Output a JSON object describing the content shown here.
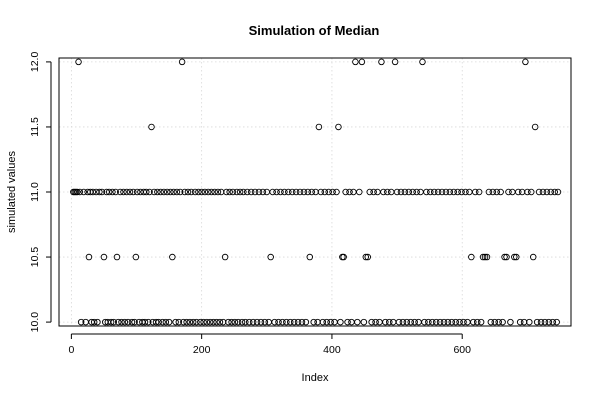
{
  "chart_data": {
    "type": "scatter",
    "title": "Simulation of Median",
    "xlabel": "Index",
    "ylabel": "simulated values",
    "xlim": [
      -19,
      767
    ],
    "ylim": [
      9.97,
      12.03
    ],
    "xticks": [
      0,
      200,
      400,
      600
    ],
    "yticks": [
      10.0,
      10.5,
      11.0,
      11.5,
      12.0
    ],
    "grid": true,
    "points": [
      [
        3,
        11.0
      ],
      [
        5,
        11.0
      ],
      [
        7,
        11.0
      ],
      [
        9,
        11.0
      ],
      [
        11,
        12.0
      ],
      [
        13,
        11.0
      ],
      [
        15,
        10.0
      ],
      [
        19,
        11.0
      ],
      [
        22,
        10.0
      ],
      [
        25,
        11.0
      ],
      [
        27,
        10.5
      ],
      [
        29,
        11.0
      ],
      [
        31,
        10.0
      ],
      [
        33,
        11.0
      ],
      [
        35,
        10.0
      ],
      [
        38,
        11.0
      ],
      [
        40,
        10.0
      ],
      [
        43,
        11.0
      ],
      [
        47,
        11.0
      ],
      [
        50,
        10.5
      ],
      [
        52,
        10.0
      ],
      [
        54,
        11.0
      ],
      [
        56,
        10.0
      ],
      [
        58,
        11.0
      ],
      [
        61,
        10.0
      ],
      [
        63,
        11.0
      ],
      [
        65,
        10.0
      ],
      [
        68,
        11.0
      ],
      [
        70,
        10.5
      ],
      [
        72,
        10.0
      ],
      [
        75,
        11.0
      ],
      [
        77,
        10.0
      ],
      [
        80,
        11.0
      ],
      [
        82,
        10.0
      ],
      [
        85,
        11.0
      ],
      [
        87,
        10.0
      ],
      [
        90,
        11.0
      ],
      [
        93,
        10.0
      ],
      [
        95,
        11.0
      ],
      [
        97,
        10.0
      ],
      [
        99,
        10.5
      ],
      [
        101,
        11.0
      ],
      [
        104,
        10.0
      ],
      [
        106,
        11.0
      ],
      [
        109,
        10.0
      ],
      [
        111,
        11.0
      ],
      [
        113,
        10.0
      ],
      [
        115,
        11.0
      ],
      [
        118,
        10.0
      ],
      [
        120,
        11.0
      ],
      [
        123,
        11.5
      ],
      [
        125,
        10.0
      ],
      [
        127,
        11.0
      ],
      [
        130,
        10.0
      ],
      [
        132,
        11.0
      ],
      [
        134,
        10.0
      ],
      [
        137,
        11.0
      ],
      [
        140,
        10.0
      ],
      [
        142,
        11.0
      ],
      [
        145,
        10.0
      ],
      [
        147,
        11.0
      ],
      [
        150,
        10.0
      ],
      [
        152,
        11.0
      ],
      [
        155,
        10.5
      ],
      [
        157,
        11.0
      ],
      [
        160,
        10.0
      ],
      [
        162,
        11.0
      ],
      [
        165,
        10.0
      ],
      [
        167,
        11.0
      ],
      [
        170,
        12.0
      ],
      [
        172,
        10.0
      ],
      [
        174,
        11.0
      ],
      [
        177,
        10.0
      ],
      [
        179,
        11.0
      ],
      [
        182,
        10.0
      ],
      [
        184,
        11.0
      ],
      [
        187,
        10.0
      ],
      [
        190,
        11.0
      ],
      [
        192,
        10.0
      ],
      [
        195,
        11.0
      ],
      [
        198,
        10.0
      ],
      [
        200,
        11.0
      ],
      [
        203,
        10.0
      ],
      [
        205,
        11.0
      ],
      [
        208,
        10.0
      ],
      [
        210,
        11.0
      ],
      [
        213,
        10.0
      ],
      [
        215,
        11.0
      ],
      [
        218,
        10.0
      ],
      [
        220,
        11.0
      ],
      [
        223,
        10.0
      ],
      [
        225,
        11.0
      ],
      [
        228,
        10.0
      ],
      [
        230,
        11.0
      ],
      [
        233,
        10.0
      ],
      [
        236,
        10.5
      ],
      [
        238,
        11.0
      ],
      [
        241,
        10.0
      ],
      [
        243,
        11.0
      ],
      [
        246,
        10.0
      ],
      [
        248,
        11.0
      ],
      [
        251,
        10.0
      ],
      [
        254,
        11.0
      ],
      [
        256,
        10.0
      ],
      [
        259,
        11.0
      ],
      [
        262,
        10.0
      ],
      [
        264,
        11.0
      ],
      [
        267,
        10.0
      ],
      [
        270,
        11.0
      ],
      [
        273,
        10.0
      ],
      [
        276,
        11.0
      ],
      [
        279,
        10.0
      ],
      [
        282,
        11.0
      ],
      [
        285,
        10.0
      ],
      [
        288,
        11.0
      ],
      [
        291,
        10.0
      ],
      [
        294,
        11.0
      ],
      [
        297,
        10.0
      ],
      [
        300,
        11.0
      ],
      [
        303,
        10.0
      ],
      [
        306,
        10.5
      ],
      [
        309,
        11.0
      ],
      [
        312,
        10.0
      ],
      [
        315,
        11.0
      ],
      [
        318,
        10.0
      ],
      [
        321,
        11.0
      ],
      [
        324,
        10.0
      ],
      [
        327,
        11.0
      ],
      [
        330,
        10.0
      ],
      [
        333,
        11.0
      ],
      [
        336,
        10.0
      ],
      [
        339,
        11.0
      ],
      [
        342,
        10.0
      ],
      [
        345,
        11.0
      ],
      [
        348,
        10.0
      ],
      [
        351,
        11.0
      ],
      [
        354,
        10.0
      ],
      [
        357,
        11.0
      ],
      [
        360,
        10.0
      ],
      [
        363,
        11.0
      ],
      [
        366,
        10.5
      ],
      [
        369,
        11.0
      ],
      [
        372,
        10.0
      ],
      [
        375,
        11.0
      ],
      [
        378,
        10.0
      ],
      [
        380,
        11.5
      ],
      [
        383,
        11.0
      ],
      [
        386,
        10.0
      ],
      [
        389,
        11.0
      ],
      [
        392,
        10.0
      ],
      [
        395,
        11.0
      ],
      [
        398,
        10.0
      ],
      [
        401,
        11.0
      ],
      [
        404,
        10.0
      ],
      [
        407,
        11.0
      ],
      [
        410,
        11.5
      ],
      [
        413,
        10.0
      ],
      [
        416,
        10.5
      ],
      [
        418,
        10.5
      ],
      [
        421,
        11.0
      ],
      [
        424,
        10.0
      ],
      [
        427,
        11.0
      ],
      [
        430,
        10.0
      ],
      [
        433,
        11.0
      ],
      [
        436,
        12.0
      ],
      [
        439,
        10.0
      ],
      [
        442,
        11.0
      ],
      [
        446,
        12.0
      ],
      [
        449,
        10.0
      ],
      [
        452,
        10.5
      ],
      [
        455,
        10.5
      ],
      [
        458,
        11.0
      ],
      [
        461,
        10.0
      ],
      [
        464,
        11.0
      ],
      [
        467,
        10.0
      ],
      [
        470,
        11.0
      ],
      [
        473,
        10.0
      ],
      [
        476,
        12.0
      ],
      [
        479,
        11.0
      ],
      [
        482,
        10.0
      ],
      [
        485,
        11.0
      ],
      [
        488,
        10.0
      ],
      [
        491,
        11.0
      ],
      [
        494,
        10.0
      ],
      [
        497,
        12.0
      ],
      [
        500,
        11.0
      ],
      [
        503,
        10.0
      ],
      [
        506,
        11.0
      ],
      [
        509,
        10.0
      ],
      [
        512,
        11.0
      ],
      [
        515,
        10.0
      ],
      [
        518,
        11.0
      ],
      [
        521,
        10.0
      ],
      [
        524,
        11.0
      ],
      [
        527,
        10.0
      ],
      [
        530,
        11.0
      ],
      [
        533,
        10.0
      ],
      [
        536,
        11.0
      ],
      [
        539,
        12.0
      ],
      [
        542,
        10.0
      ],
      [
        545,
        11.0
      ],
      [
        548,
        10.0
      ],
      [
        551,
        11.0
      ],
      [
        554,
        10.0
      ],
      [
        557,
        11.0
      ],
      [
        560,
        10.0
      ],
      [
        563,
        11.0
      ],
      [
        566,
        10.0
      ],
      [
        569,
        11.0
      ],
      [
        572,
        10.0
      ],
      [
        575,
        11.0
      ],
      [
        578,
        10.0
      ],
      [
        581,
        11.0
      ],
      [
        584,
        10.0
      ],
      [
        587,
        11.0
      ],
      [
        590,
        10.0
      ],
      [
        593,
        11.0
      ],
      [
        596,
        10.0
      ],
      [
        599,
        11.0
      ],
      [
        602,
        10.0
      ],
      [
        605,
        11.0
      ],
      [
        608,
        10.0
      ],
      [
        611,
        11.0
      ],
      [
        614,
        10.5
      ],
      [
        617,
        10.0
      ],
      [
        620,
        11.0
      ],
      [
        623,
        10.0
      ],
      [
        626,
        11.0
      ],
      [
        629,
        10.0
      ],
      [
        632,
        10.5
      ],
      [
        635,
        10.5
      ],
      [
        638,
        10.5
      ],
      [
        641,
        11.0
      ],
      [
        644,
        10.0
      ],
      [
        647,
        11.0
      ],
      [
        650,
        10.0
      ],
      [
        653,
        11.0
      ],
      [
        656,
        10.0
      ],
      [
        659,
        11.0
      ],
      [
        662,
        10.0
      ],
      [
        665,
        10.5
      ],
      [
        668,
        10.5
      ],
      [
        671,
        11.0
      ],
      [
        674,
        10.0
      ],
      [
        677,
        11.0
      ],
      [
        680,
        10.5
      ],
      [
        683,
        10.5
      ],
      [
        686,
        11.0
      ],
      [
        689,
        10.0
      ],
      [
        692,
        11.0
      ],
      [
        695,
        10.0
      ],
      [
        697,
        12.0
      ],
      [
        700,
        11.0
      ],
      [
        703,
        10.0
      ],
      [
        706,
        11.0
      ],
      [
        709,
        10.5
      ],
      [
        712,
        11.5
      ],
      [
        715,
        10.0
      ],
      [
        718,
        11.0
      ],
      [
        721,
        10.0
      ],
      [
        724,
        11.0
      ],
      [
        727,
        10.0
      ],
      [
        730,
        11.0
      ],
      [
        733,
        10.0
      ],
      [
        736,
        11.0
      ],
      [
        739,
        10.0
      ],
      [
        742,
        11.0
      ],
      [
        745,
        10.0
      ],
      [
        747,
        11.0
      ]
    ]
  }
}
